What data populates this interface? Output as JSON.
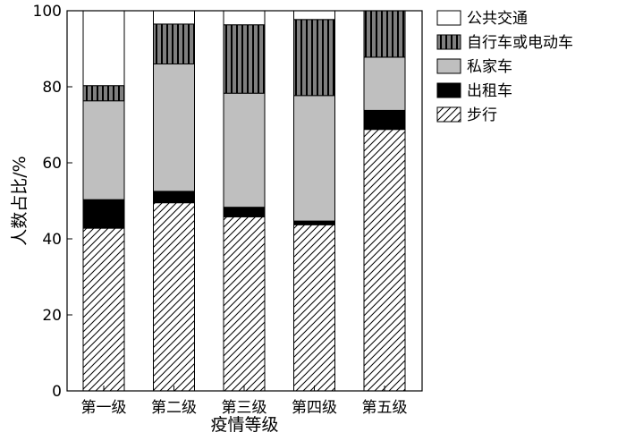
{
  "chart_data": {
    "type": "bar",
    "stacked": true,
    "categories": [
      "第一级",
      "第二级",
      "第三级",
      "第四级",
      "第五级"
    ],
    "xlabel": "疫情等级",
    "ylabel": "人数占比/%",
    "ylim": [
      0,
      100
    ],
    "yticks": [
      0,
      20,
      40,
      60,
      80,
      100
    ],
    "grid": false,
    "legend_position": "top-right",
    "series": [
      {
        "name": "步行",
        "pattern": "diagonal-hatch",
        "values": [
          42.8,
          49.5,
          45.8,
          43.7,
          68.8
        ]
      },
      {
        "name": "出租车",
        "color": "#000000",
        "values": [
          7.5,
          3.0,
          2.5,
          1.0,
          5.0
        ]
      },
      {
        "name": "私家车",
        "color": "#bfbfbf",
        "values": [
          26.0,
          33.5,
          30.0,
          33.0,
          14.0
        ]
      },
      {
        "name": "自行车或电动车",
        "pattern": "vertical-stripes",
        "values": [
          4.0,
          10.5,
          18.0,
          20.0,
          12.2
        ]
      },
      {
        "name": "公共交通",
        "color": "#ffffff",
        "values": [
          19.7,
          3.5,
          3.7,
          2.3,
          0.0
        ]
      }
    ],
    "legend_order": [
      "公共交通",
      "自行车或电动车",
      "私家车",
      "出租车",
      "步行"
    ]
  }
}
